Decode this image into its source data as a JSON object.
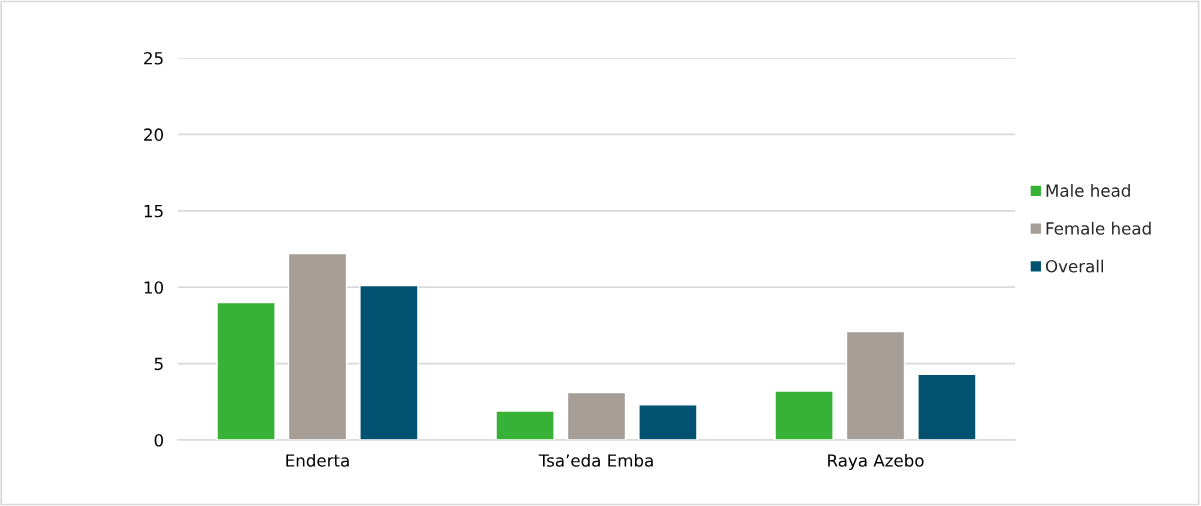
{
  "chart_data": {
    "type": "bar",
    "categories": [
      "Enderta",
      "Tsa’eda Emba",
      "Raya Azebo"
    ],
    "series": [
      {
        "name": "Male head",
        "color": "#37b236",
        "values": [
          9.0,
          1.9,
          3.2
        ]
      },
      {
        "name": "Female head",
        "color": "#a59d96",
        "values": [
          12.2,
          3.1,
          7.1
        ]
      },
      {
        "name": "Overall",
        "color": "#005270",
        "values": [
          10.1,
          2.3,
          4.3
        ]
      }
    ],
    "ylim": [
      0,
      25
    ],
    "yticks": [
      0,
      5,
      10,
      15,
      20,
      25
    ],
    "grid": "y",
    "legend": "right"
  }
}
